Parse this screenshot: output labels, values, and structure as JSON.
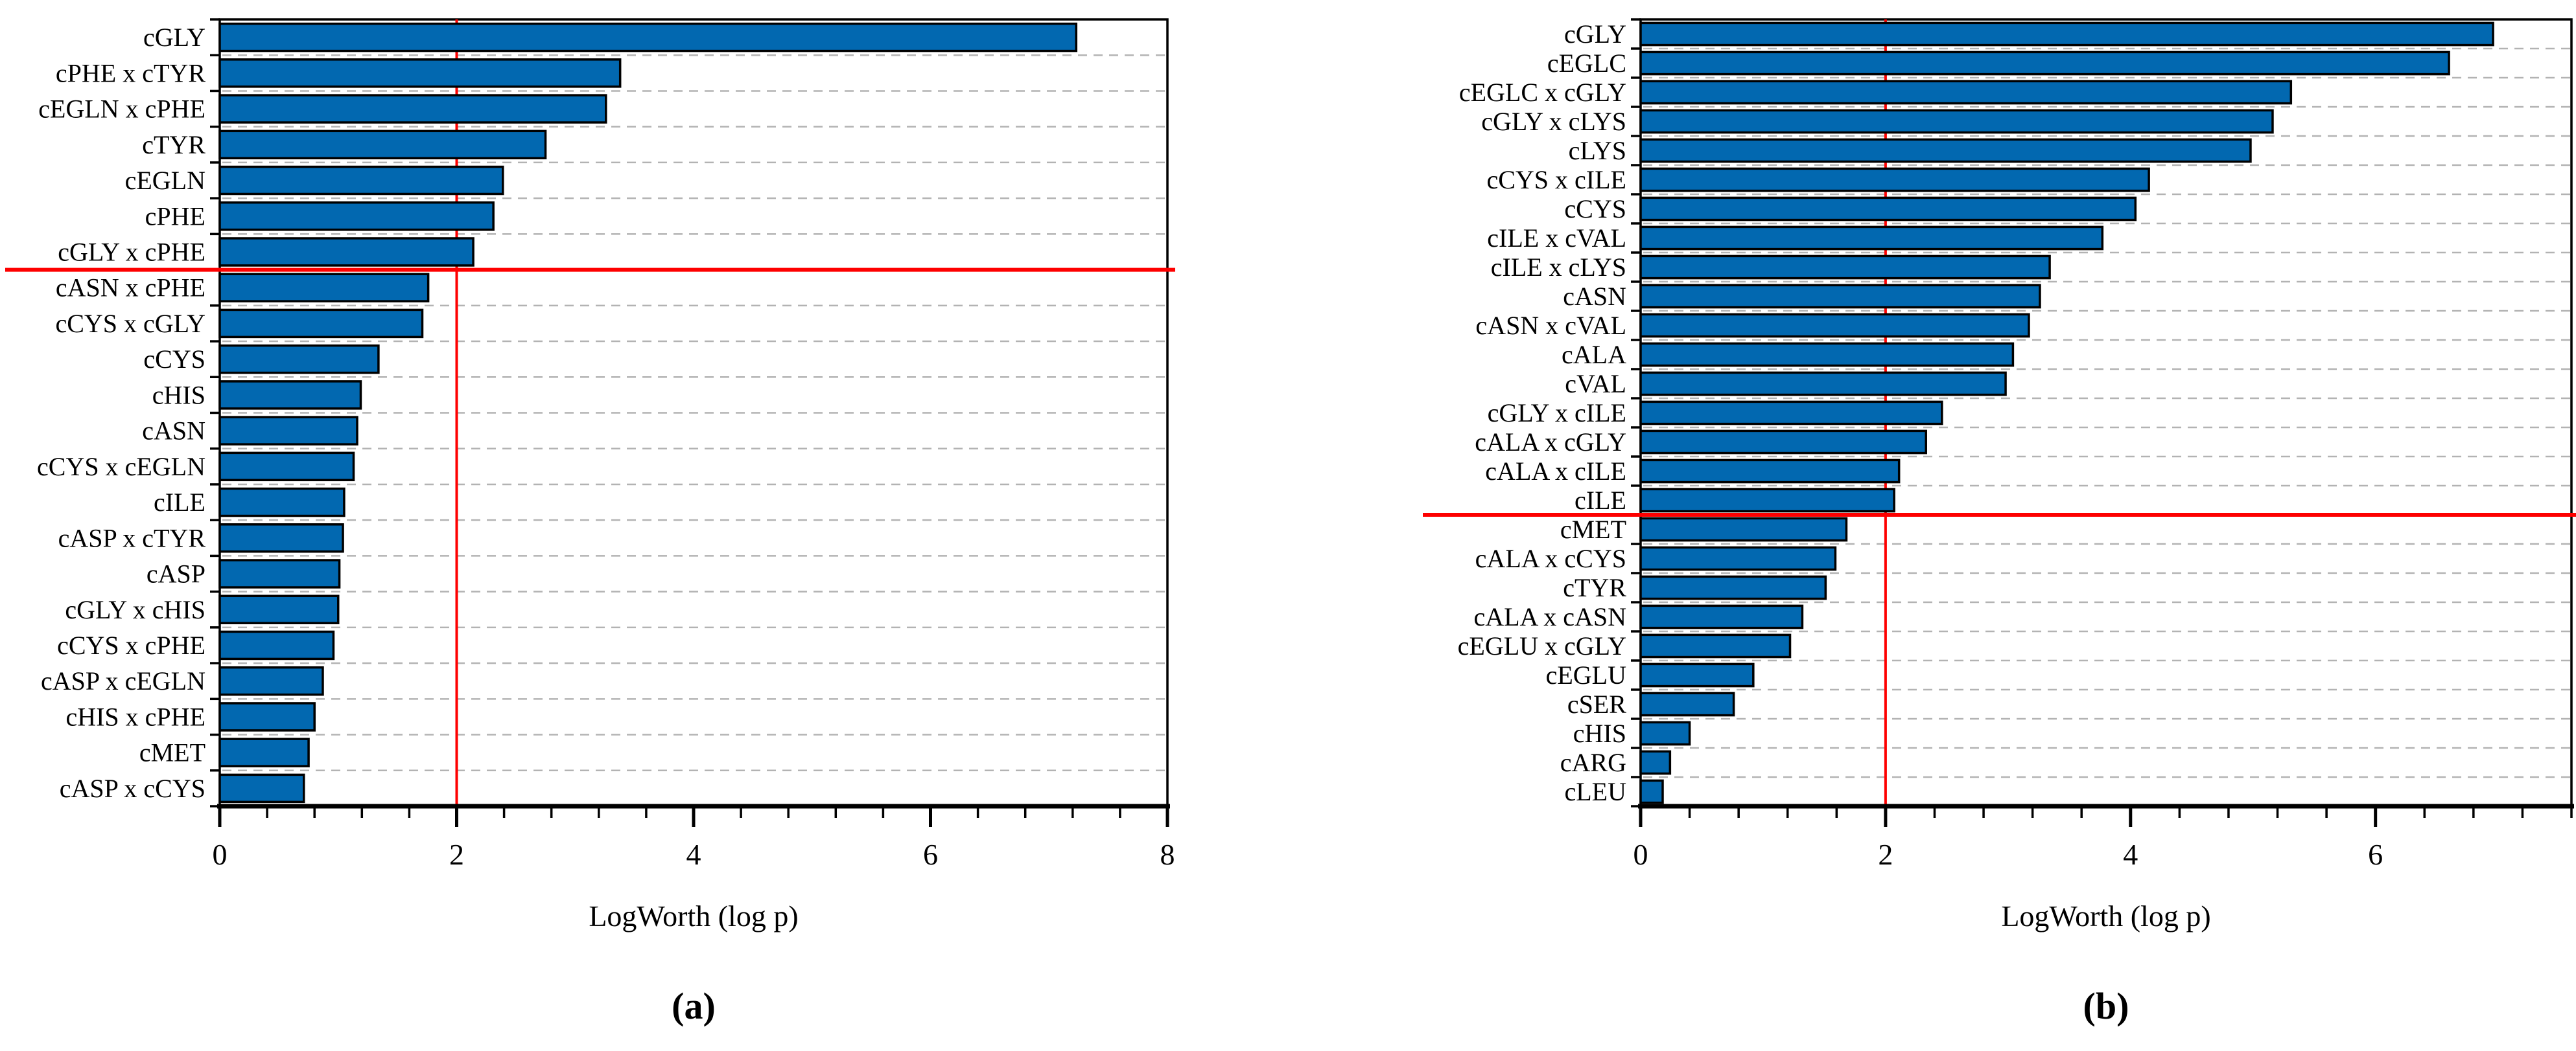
{
  "figure": {
    "background": "#ffffff",
    "text_color": "#000000"
  },
  "chart_data": [
    {
      "id": "a",
      "type": "bar",
      "orientation": "horizontal",
      "caption": "(a)",
      "xlabel": "LogWorth (log p)",
      "categories": [
        "cGLY",
        "cPHE x cTYR",
        "cEGLN x cPHE",
        "cTYR",
        "cEGLN",
        "cPHE",
        "cGLY x cPHE",
        "cASN x cPHE",
        "cCYS x cGLY",
        "cCYS",
        "cHIS",
        "cASN",
        "cCYS x cEGLN",
        "cILE",
        "cASP x cTYR",
        "cASP",
        "cGLY x cHIS",
        "cCYS x cPHE",
        "cASP x cEGLN",
        "cHIS x cPHE",
        "cMET",
        "cASP x cCYS"
      ],
      "values": [
        7.23,
        3.38,
        3.26,
        2.75,
        2.39,
        2.31,
        2.14,
        1.76,
        1.71,
        1.34,
        1.19,
        1.16,
        1.13,
        1.05,
        1.04,
        1.01,
        1.0,
        0.96,
        0.87,
        0.8,
        0.75,
        0.71
      ],
      "xlim": [
        0,
        8
      ],
      "xticks": [
        0,
        2,
        4,
        6,
        8
      ],
      "minor_tick_step": 0.4,
      "grid": "row-boundary-dashed",
      "reference_vline_x": 2,
      "reference_hline_after_index": 6,
      "colors": {
        "bar_fill": "#0268b0",
        "bar_stroke": "#000000",
        "reference_line": "#fe0000",
        "grid_line": "#b3b3b3",
        "axis": "#000000"
      }
    },
    {
      "id": "b",
      "type": "bar",
      "orientation": "horizontal",
      "caption": "(b)",
      "xlabel": "LogWorth (log p)",
      "categories": [
        "cGLY",
        "cEGLC",
        "cEGLC x cGLY",
        "cGLY x cLYS",
        "cLYS",
        "cCYS x cILE",
        "cCYS",
        "cILE x cVAL",
        "cILE x cLYS",
        "cASN",
        "cASN x cVAL",
        "cALA",
        "cVAL",
        "cGLY x cILE",
        "cALA x cGLY",
        "cALA x cILE",
        "cILE",
        "cMET",
        "cALA x cCYS",
        "cTYR",
        "cALA x cASN",
        "cEGLU x cGLY",
        "cEGLU",
        "cSER",
        "cHIS",
        "cARG",
        "cLEU"
      ],
      "values": [
        6.96,
        6.6,
        5.31,
        5.16,
        4.98,
        4.15,
        4.04,
        3.77,
        3.34,
        3.26,
        3.17,
        3.04,
        2.98,
        2.46,
        2.33,
        2.11,
        2.07,
        1.68,
        1.59,
        1.51,
        1.32,
        1.22,
        0.92,
        0.76,
        0.4,
        0.24,
        0.18
      ],
      "xlim": [
        0,
        7.6
      ],
      "xticks": [
        0,
        2,
        4,
        6
      ],
      "minor_tick_step": 0.4,
      "grid": "row-boundary-dashed",
      "reference_vline_x": 2,
      "reference_hline_after_index": 16,
      "colors": {
        "bar_fill": "#0268b0",
        "bar_stroke": "#000000",
        "reference_line": "#fe0000",
        "grid_line": "#b3b3b3",
        "axis": "#000000"
      }
    }
  ]
}
